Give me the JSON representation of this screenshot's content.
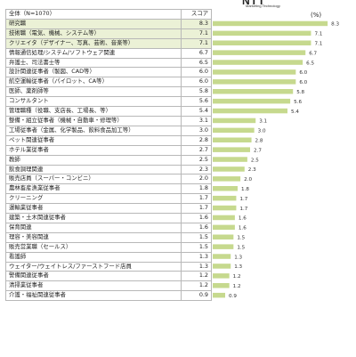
{
  "header": {
    "logo": "NTT",
    "logo_sub": "Marketing Technology",
    "unit": "(%)"
  },
  "table": {
    "col_label": "全体（N=1070）",
    "col_score": "スコア"
  },
  "chart_data": {
    "type": "bar",
    "orientation": "horizontal",
    "bar_color": "#c6d98e",
    "highlight_color": "#ebf1d6",
    "highlight_rows": [
      0,
      1,
      2
    ],
    "categories": [
      "研究職",
      "技術職（電気、機械、システム等）",
      "クリエイタ（デザイナー、写真、芸術、音楽等）",
      "情報通信処理/システム/ソフトウェア関連",
      "弁護士、司法書士等",
      "設計関連従事者（製図、CAD等）",
      "航空運輸従事者（パイロット、CA等）",
      "医師、薬剤師等",
      "コンサルタント",
      "管理職種（役職、支店長、工場長、等）",
      "整備・組立従事者（機械・自動車・修理等）",
      "工場従事者（金属、化学製品、飲料食品加工等）",
      "ペット関連従事者",
      "ホテル業従事者",
      "教師",
      "飲食調理関連",
      "販売店員（スーパー・コンビニ）",
      "農林畜産漁業従事者",
      "クリーニング",
      "運輸業従事者",
      "建築・土木関連従事者",
      "保育関連",
      "理容・美容関連",
      "販売営業職（セールス）",
      "看護師",
      "ウェイター/ウェイトレス/ファーストフード店員",
      "警備関連従事者",
      "清掃業従事者",
      "介護・福祉関連従事者"
    ],
    "values": [
      8.3,
      7.1,
      7.1,
      6.7,
      6.5,
      6.0,
      6.0,
      5.8,
      5.6,
      5.4,
      3.1,
      3.0,
      2.8,
      2.7,
      2.5,
      2.3,
      2.0,
      1.8,
      1.7,
      1.7,
      1.6,
      1.6,
      1.5,
      1.5,
      1.3,
      1.3,
      1.2,
      1.2,
      0.9
    ],
    "xlim": [
      0,
      9
    ]
  }
}
